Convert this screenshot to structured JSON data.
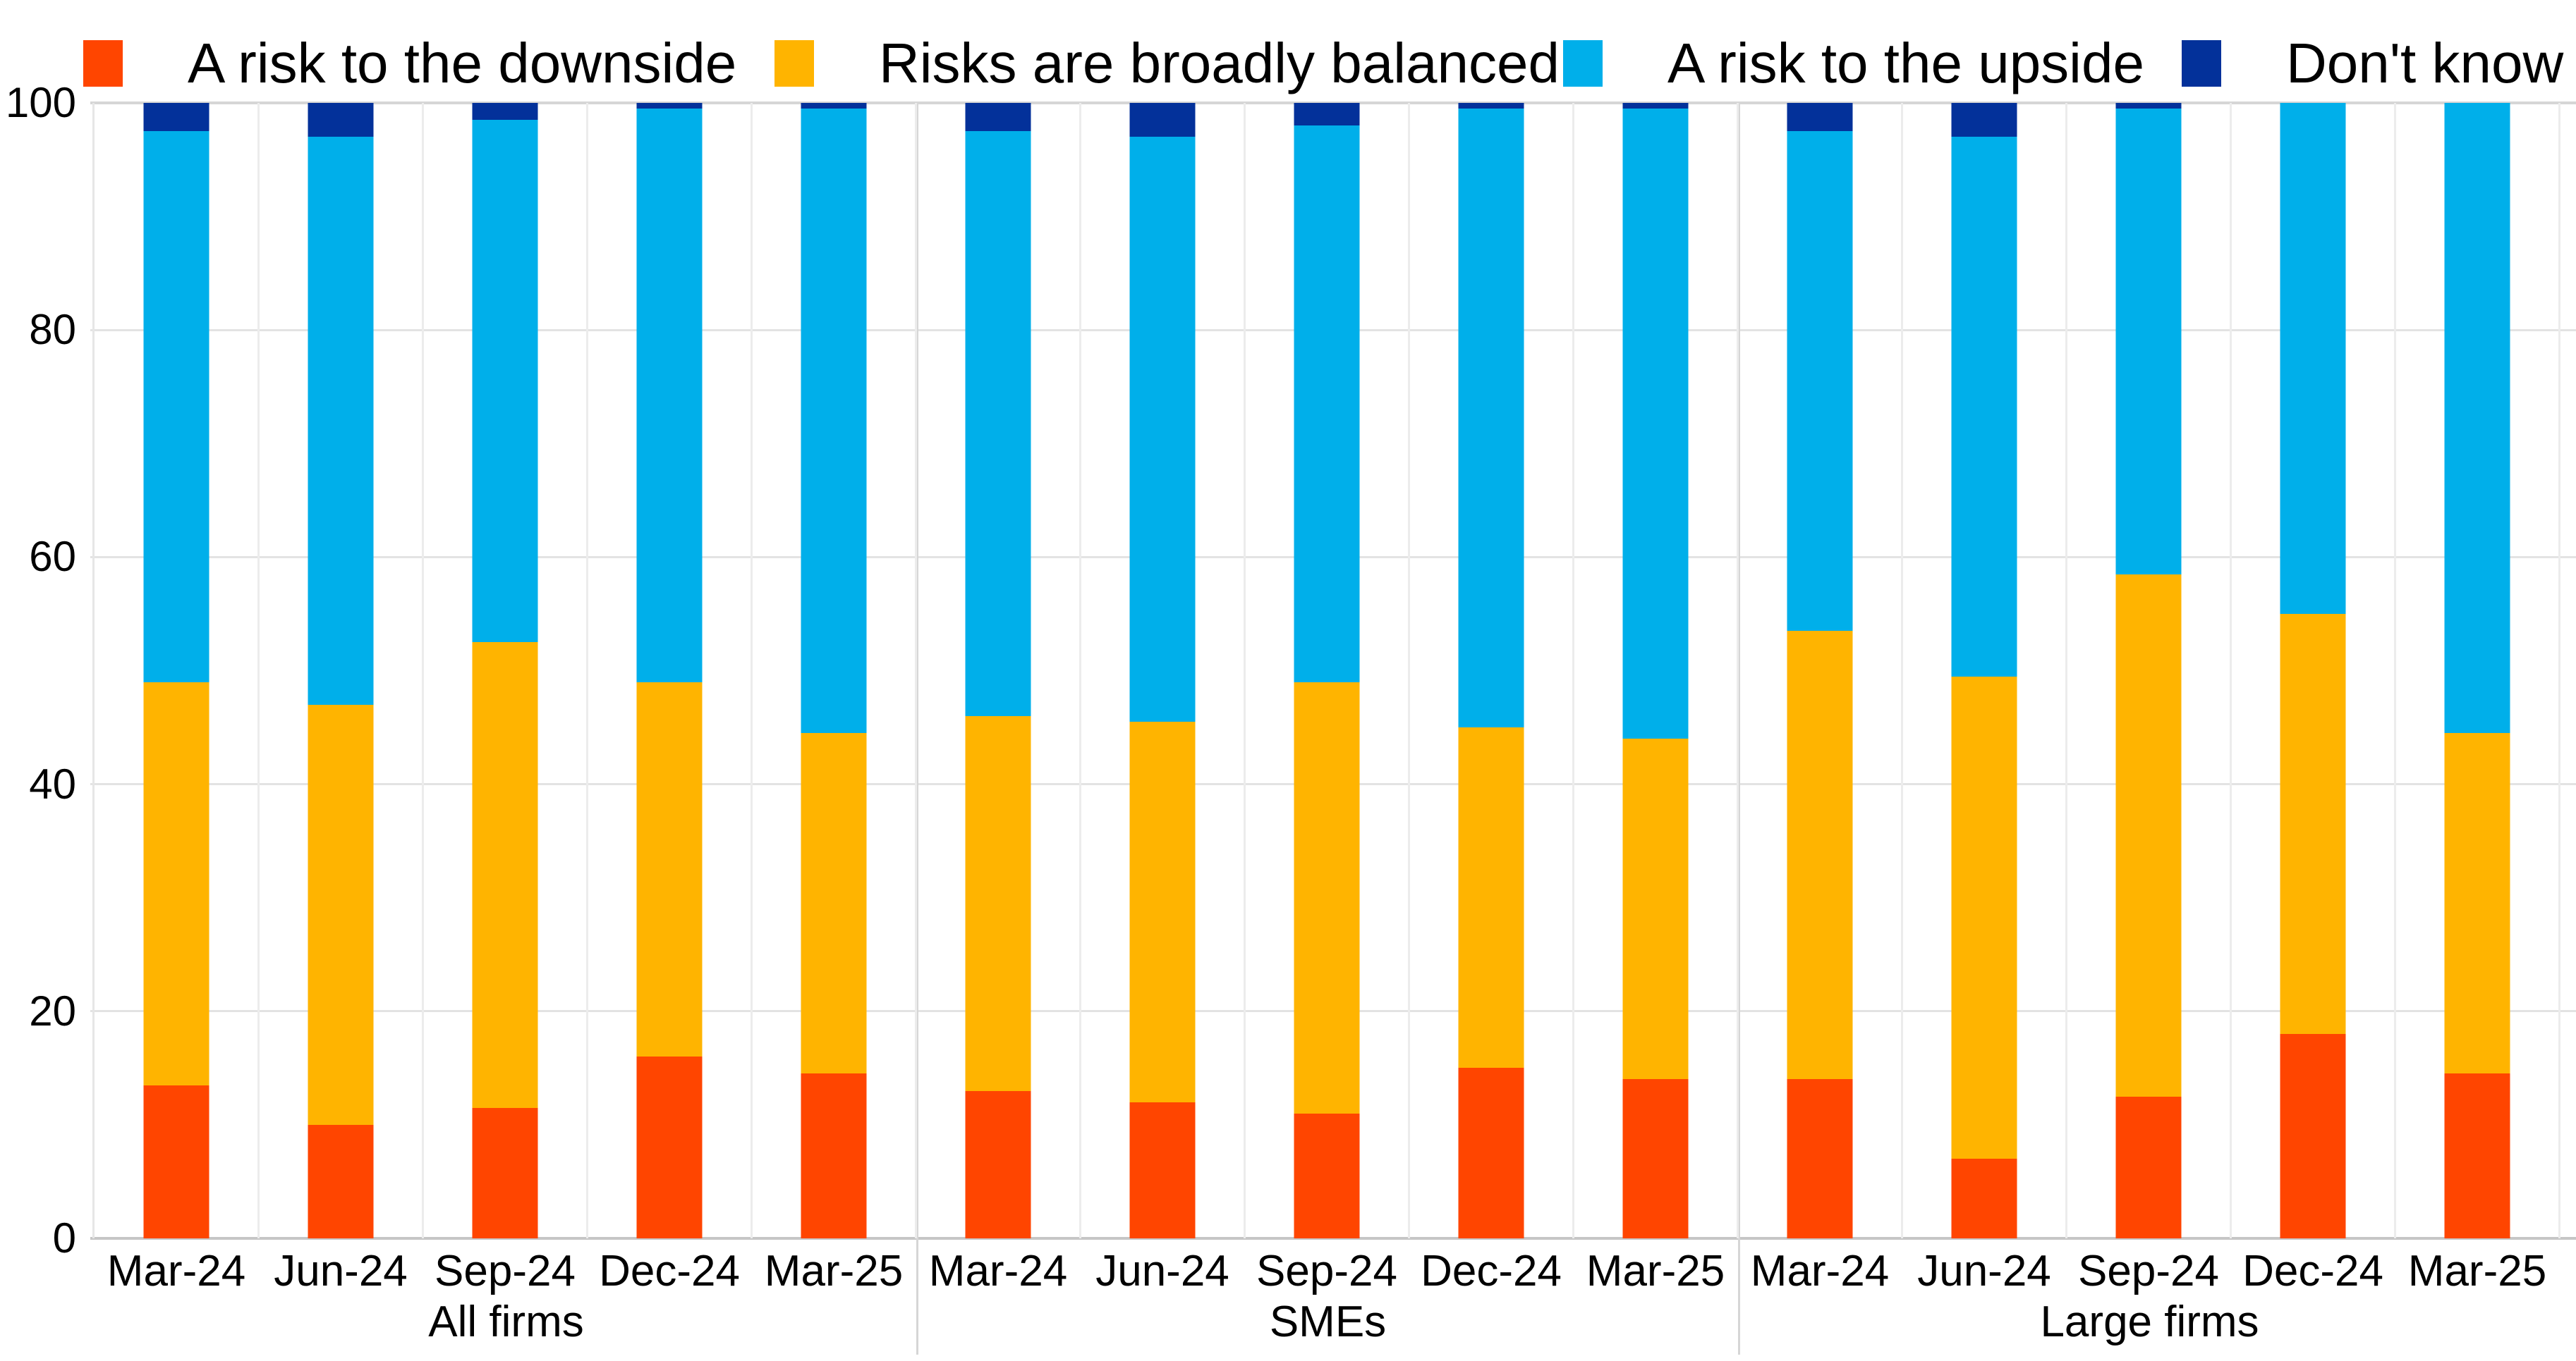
{
  "chart_data": {
    "type": "bar",
    "stacked": true,
    "title": "",
    "xlabel": "",
    "ylabel": "",
    "ylim": [
      0,
      100
    ],
    "yticks": [
      0,
      20,
      40,
      60,
      80,
      100
    ],
    "legend_position": "top",
    "grid": "horizontal-light",
    "groups": [
      "All firms",
      "SMEs",
      "Large firms"
    ],
    "categories": [
      "Mar-24",
      "Jun-24",
      "Sep-24",
      "Dec-24",
      "Mar-25"
    ],
    "series": [
      {
        "name": "A risk to the downside",
        "color": "#FF4500",
        "values": [
          [
            13.5,
            10,
            11.5,
            16,
            14.5
          ],
          [
            13,
            12,
            11,
            15,
            14
          ],
          [
            14,
            7,
            12.5,
            18,
            14.5
          ]
        ]
      },
      {
        "name": "Risks are broadly balanced",
        "color": "#FFB400",
        "values": [
          [
            35.5,
            37,
            41,
            33,
            30
          ],
          [
            33,
            33.5,
            38,
            30,
            30
          ],
          [
            39.5,
            42.5,
            46,
            37,
            30
          ]
        ]
      },
      {
        "name": "A risk to the upside",
        "color": "#00AFEA",
        "values": [
          [
            48.5,
            50,
            46,
            50.5,
            55
          ],
          [
            51.5,
            51.5,
            49,
            54.5,
            55.5
          ],
          [
            44,
            47.5,
            41,
            45,
            55.5
          ]
        ]
      },
      {
        "name": "Don't know",
        "color": "#03319A",
        "values": [
          [
            2.5,
            3,
            1.5,
            0.5,
            0.5
          ],
          [
            2.5,
            3,
            2,
            0.5,
            0.5
          ],
          [
            2.5,
            3,
            0.5,
            0,
            0
          ]
        ]
      }
    ]
  }
}
